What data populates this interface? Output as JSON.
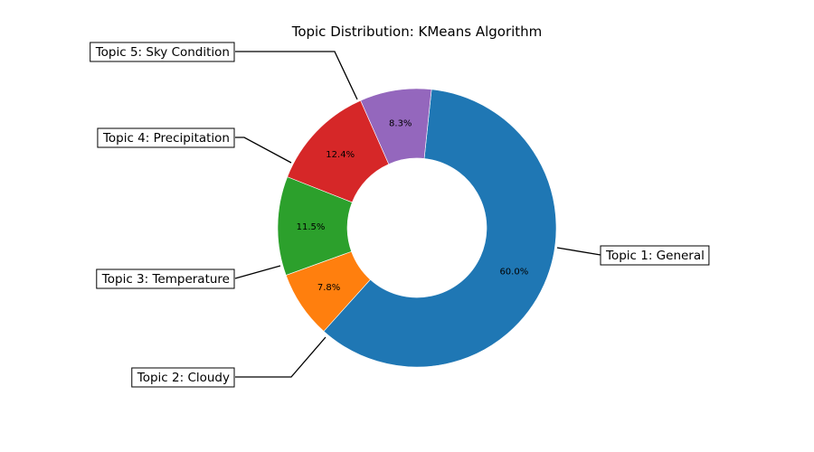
{
  "chart_data": {
    "type": "pie",
    "variant": "donut",
    "title": "Topic Distribution: KMeans Algorithm",
    "slices": [
      {
        "label": "Topic 1: General",
        "value": 60.0,
        "pct_label": "60.0%",
        "color": "#1f77b4"
      },
      {
        "label": "Topic 2: Cloudy",
        "value": 7.8,
        "pct_label": "7.8%",
        "color": "#ff7f0e"
      },
      {
        "label": "Topic 3: Temperature",
        "value": 11.5,
        "pct_label": "11.5%",
        "color": "#2ca02c"
      },
      {
        "label": "Topic 4: Precipitation",
        "value": 12.4,
        "pct_label": "12.4%",
        "color": "#d62728"
      },
      {
        "label": "Topic 5: Sky Condition",
        "value": 8.3,
        "pct_label": "8.3%",
        "color": "#9467bd"
      }
    ],
    "start_angle_deg": 84,
    "direction": "clockwise",
    "legend": "none"
  }
}
